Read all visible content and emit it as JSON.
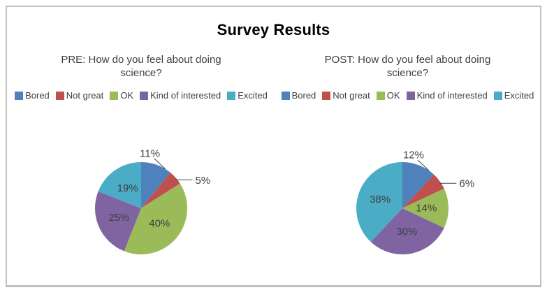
{
  "title": "Survey Results",
  "colors": {
    "frame_border": "#C0C0C0",
    "title_text": "#000000",
    "body_text": "#404040",
    "leader_line": "#404040"
  },
  "chart_data": [
    {
      "type": "pie",
      "title": "PRE: How do you feel about doing science?",
      "categories": [
        "Bored",
        "Not great",
        "OK",
        "Kind of interested",
        "Excited"
      ],
      "values": [
        11,
        5,
        40,
        25,
        19
      ],
      "labels": [
        "11%",
        "5%",
        "40%",
        "25%",
        "19%"
      ],
      "colors": [
        "#4F81BD",
        "#C0504D",
        "#9BBB59",
        "#8064A2",
        "#4BACC6"
      ],
      "start_angle_deg": 0,
      "direction": "clockwise",
      "legend_position": "top",
      "label_placement": [
        "outside",
        "outside",
        "inside",
        "inside",
        "inside"
      ]
    },
    {
      "type": "pie",
      "title": "POST: How do you feel about doing science?",
      "categories": [
        "Bored",
        "Not great",
        "OK",
        "Kind of interested",
        "Excited"
      ],
      "values": [
        12,
        6,
        14,
        30,
        38
      ],
      "labels": [
        "12%",
        "6%",
        "14%",
        "30%",
        "38%"
      ],
      "colors": [
        "#4F81BD",
        "#C0504D",
        "#9BBB59",
        "#8064A2",
        "#4BACC6"
      ],
      "start_angle_deg": 0,
      "direction": "clockwise",
      "legend_position": "top",
      "label_placement": [
        "outside",
        "outside",
        "inside",
        "inside",
        "inside"
      ]
    }
  ]
}
